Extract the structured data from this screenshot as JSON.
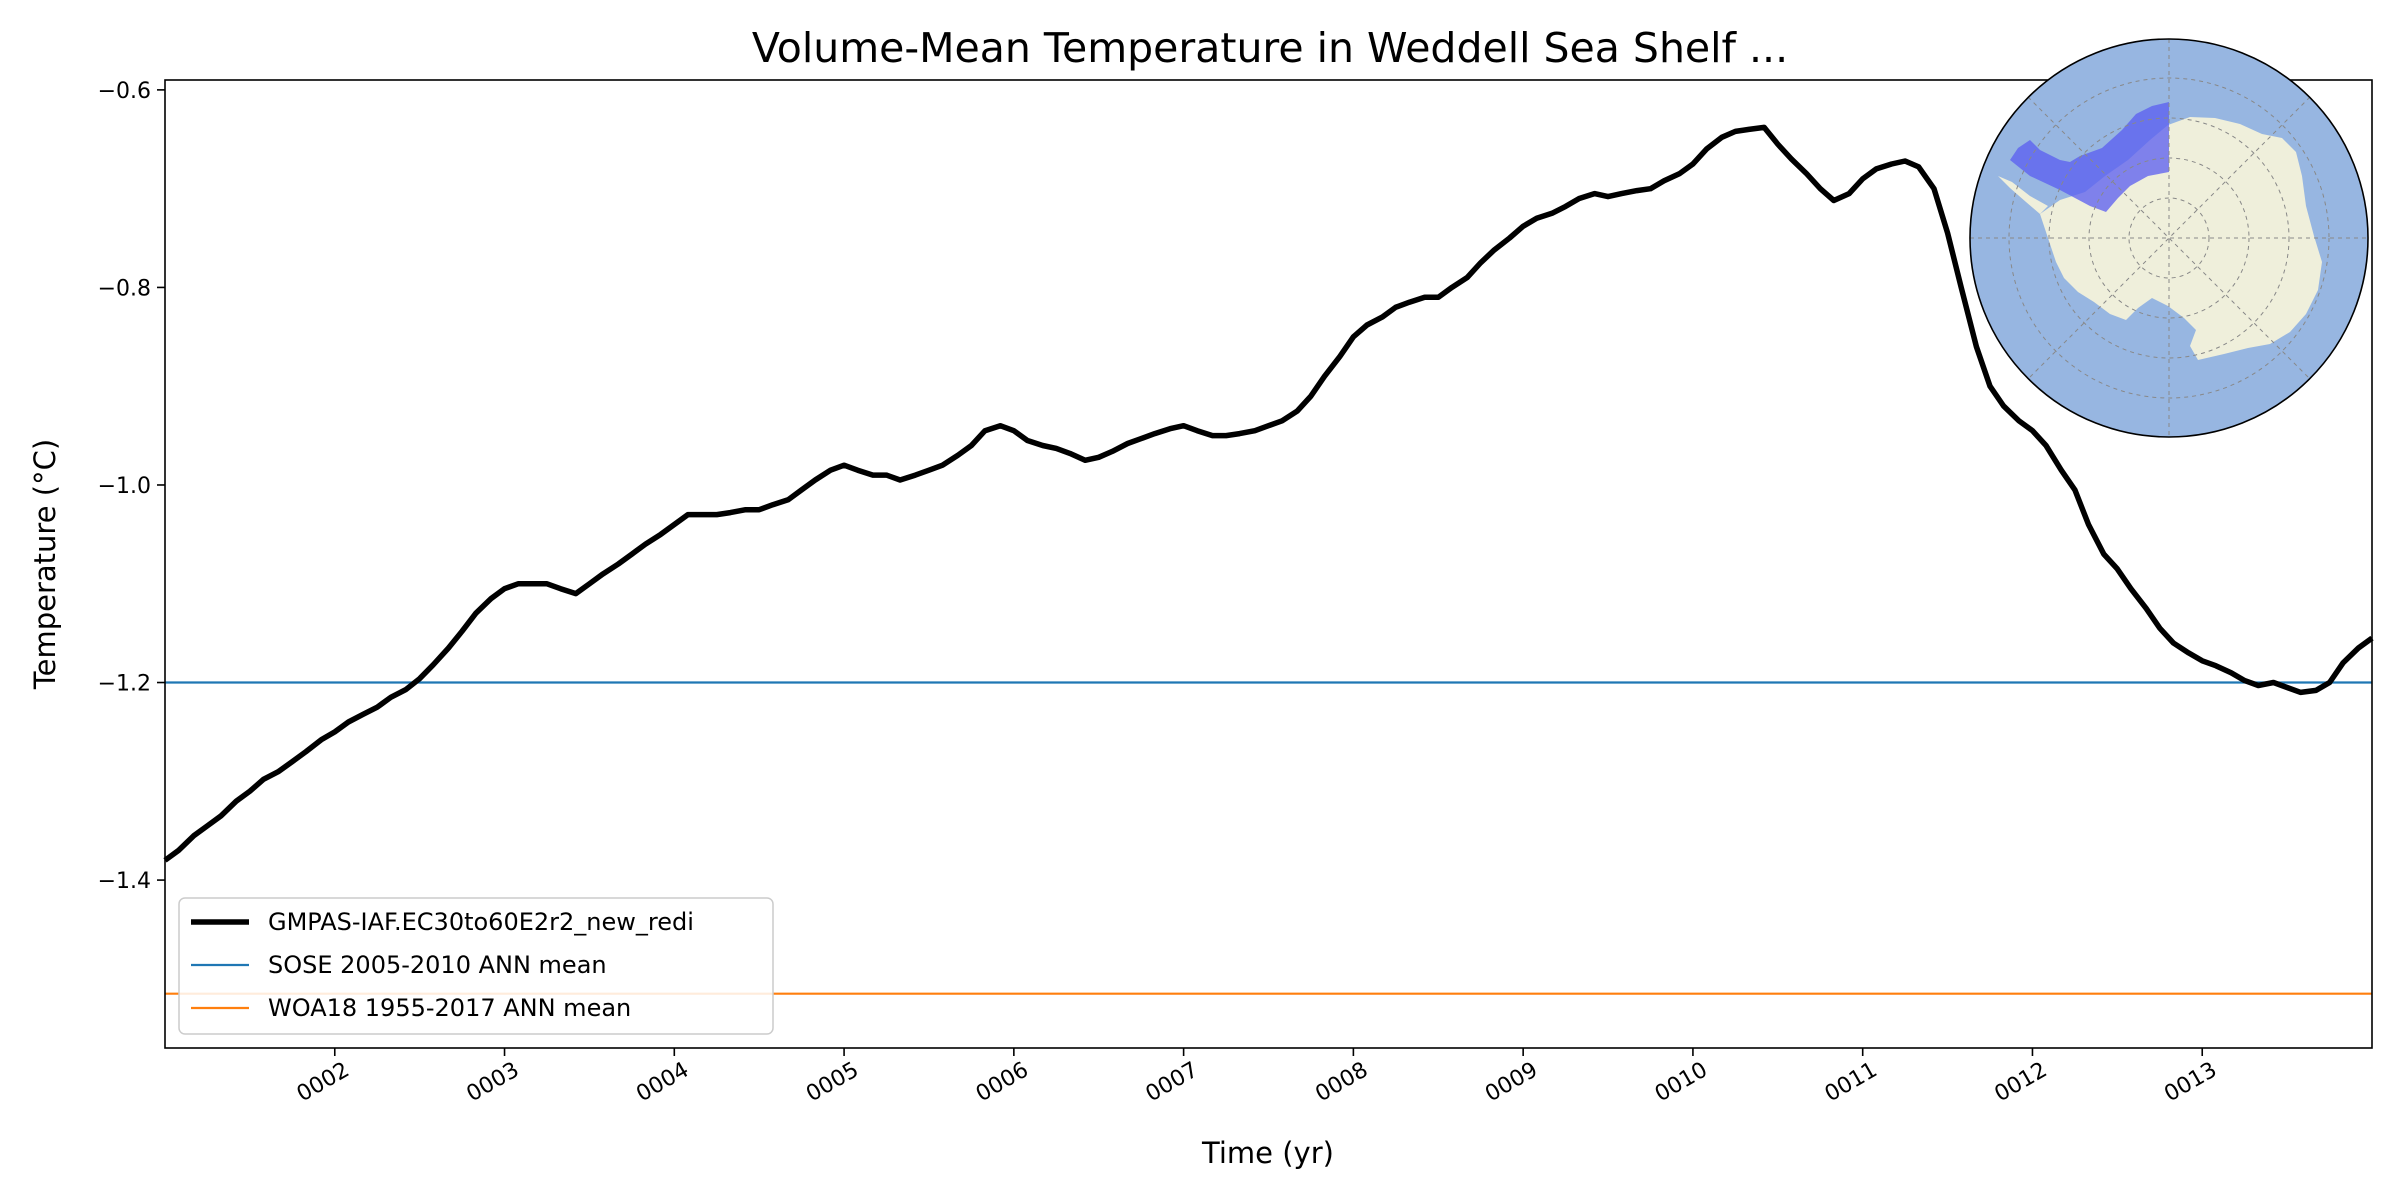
{
  "chart_data": {
    "type": "line",
    "title": "Volume-Mean Temperature in Weddell Sea Shelf ...",
    "xlabel": "Time (yr)",
    "ylabel": "Temperature (°C)",
    "xlim": [
      1.0,
      14.0
    ],
    "ylim": [
      -1.57,
      -0.59
    ],
    "xticks": [
      {
        "value": 2,
        "label": "0002"
      },
      {
        "value": 3,
        "label": "0003"
      },
      {
        "value": 4,
        "label": "0004"
      },
      {
        "value": 5,
        "label": "0005"
      },
      {
        "value": 6,
        "label": "0006"
      },
      {
        "value": 7,
        "label": "0007"
      },
      {
        "value": 8,
        "label": "0008"
      },
      {
        "value": 9,
        "label": "0009"
      },
      {
        "value": 10,
        "label": "0010"
      },
      {
        "value": 11,
        "label": "0011"
      },
      {
        "value": 12,
        "label": "0012"
      },
      {
        "value": 13,
        "label": "0013"
      }
    ],
    "yticks": [
      {
        "value": -0.6,
        "label": "−0.6"
      },
      {
        "value": -0.8,
        "label": "−0.8"
      },
      {
        "value": -1.0,
        "label": "−1.0"
      },
      {
        "value": -1.2,
        "label": "−1.2"
      },
      {
        "value": -1.4,
        "label": "−1.4"
      }
    ],
    "grid": false,
    "legend_position": "lower-left",
    "series": [
      {
        "name": "GMPAS-IAF.EC30to60E2r2_new_redi",
        "color": "#000000",
        "style": "thick-solid",
        "x": [
          1.0,
          1.08,
          1.17,
          1.25,
          1.33,
          1.42,
          1.5,
          1.58,
          1.67,
          1.75,
          1.83,
          1.92,
          2.0,
          2.08,
          2.17,
          2.25,
          2.33,
          2.42,
          2.5,
          2.58,
          2.67,
          2.75,
          2.83,
          2.92,
          3.0,
          3.08,
          3.17,
          3.25,
          3.33,
          3.42,
          3.5,
          3.58,
          3.67,
          3.75,
          3.83,
          3.92,
          4.0,
          4.08,
          4.17,
          4.25,
          4.33,
          4.42,
          4.5,
          4.58,
          4.67,
          4.75,
          4.83,
          4.92,
          5.0,
          5.08,
          5.17,
          5.25,
          5.33,
          5.42,
          5.5,
          5.58,
          5.67,
          5.75,
          5.83,
          5.92,
          6.0,
          6.08,
          6.17,
          6.25,
          6.33,
          6.42,
          6.5,
          6.58,
          6.67,
          6.75,
          6.83,
          6.92,
          7.0,
          7.08,
          7.17,
          7.25,
          7.33,
          7.42,
          7.5,
          7.58,
          7.67,
          7.75,
          7.83,
          7.92,
          8.0,
          8.08,
          8.17,
          8.25,
          8.33,
          8.42,
          8.5,
          8.58,
          8.67,
          8.75,
          8.83,
          8.92,
          9.0,
          9.08,
          9.17,
          9.25,
          9.33,
          9.42,
          9.5,
          9.58,
          9.67,
          9.75,
          9.83,
          9.92,
          10.0,
          10.08,
          10.17,
          10.25,
          10.33,
          10.42,
          10.5,
          10.58,
          10.67,
          10.75,
          10.83,
          10.92,
          11.0,
          11.08,
          11.17,
          11.25,
          11.33,
          11.42,
          11.5,
          11.58,
          11.67,
          11.75,
          11.83,
          11.92,
          12.0,
          12.08,
          12.17,
          12.25,
          12.33,
          12.42,
          12.5,
          12.58,
          12.67,
          12.75,
          12.83,
          12.92,
          13.0,
          13.08,
          13.17,
          13.25,
          13.33,
          13.42,
          13.5,
          13.58,
          13.67,
          13.75,
          13.83,
          13.92,
          14.0
        ],
        "y": [
          -1.38,
          -1.37,
          -1.355,
          -1.345,
          -1.335,
          -1.32,
          -1.31,
          -1.298,
          -1.29,
          -1.28,
          -1.27,
          -1.258,
          -1.25,
          -1.24,
          -1.232,
          -1.225,
          -1.215,
          -1.207,
          -1.196,
          -1.182,
          -1.165,
          -1.148,
          -1.13,
          -1.115,
          -1.105,
          -1.1,
          -1.1,
          -1.1,
          -1.105,
          -1.11,
          -1.1,
          -1.09,
          -1.08,
          -1.07,
          -1.06,
          -1.05,
          -1.04,
          -1.03,
          -1.03,
          -1.03,
          -1.028,
          -1.025,
          -1.025,
          -1.02,
          -1.015,
          -1.005,
          -0.995,
          -0.985,
          -0.98,
          -0.985,
          -0.99,
          -0.99,
          -0.995,
          -0.99,
          -0.985,
          -0.98,
          -0.97,
          -0.96,
          -0.945,
          -0.94,
          -0.945,
          -0.955,
          -0.96,
          -0.963,
          -0.968,
          -0.975,
          -0.972,
          -0.966,
          -0.958,
          -0.953,
          -0.948,
          -0.943,
          -0.94,
          -0.945,
          -0.95,
          -0.95,
          -0.948,
          -0.945,
          -0.94,
          -0.935,
          -0.925,
          -0.91,
          -0.89,
          -0.87,
          -0.85,
          -0.838,
          -0.83,
          -0.82,
          -0.815,
          -0.81,
          -0.81,
          -0.8,
          -0.79,
          -0.775,
          -0.762,
          -0.75,
          -0.738,
          -0.73,
          -0.725,
          -0.718,
          -0.71,
          -0.705,
          -0.708,
          -0.705,
          -0.702,
          -0.7,
          -0.692,
          -0.685,
          -0.675,
          -0.66,
          -0.648,
          -0.642,
          -0.64,
          -0.638,
          -0.655,
          -0.67,
          -0.685,
          -0.7,
          -0.712,
          -0.705,
          -0.69,
          -0.68,
          -0.675,
          -0.672,
          -0.678,
          -0.7,
          -0.745,
          -0.8,
          -0.86,
          -0.9,
          -0.92,
          -0.935,
          -0.945,
          -0.96,
          -0.985,
          -1.005,
          -1.04,
          -1.07,
          -1.085,
          -1.105,
          -1.125,
          -1.145,
          -1.16,
          -1.17,
          -1.178,
          -1.183,
          -1.19,
          -1.198,
          -1.203,
          -1.2,
          -1.205,
          -1.21,
          -1.208,
          -1.2,
          -1.18,
          -1.165,
          -1.155
        ]
      },
      {
        "name": "SOSE 2005-2010 ANN mean",
        "color": "#1f77b4",
        "style": "solid",
        "value": -1.2
      },
      {
        "name": "WOA18 1955-2017 ANN mean",
        "color": "#ff7f0e",
        "style": "solid",
        "value": -1.515
      }
    ],
    "inset_map": {
      "type": "south-polar-stereographic",
      "region": "Weddell Sea Shelf",
      "ocean_color": "#97b6e1",
      "land_color": "#efefdb",
      "region_color": "#5a5cf0"
    }
  }
}
